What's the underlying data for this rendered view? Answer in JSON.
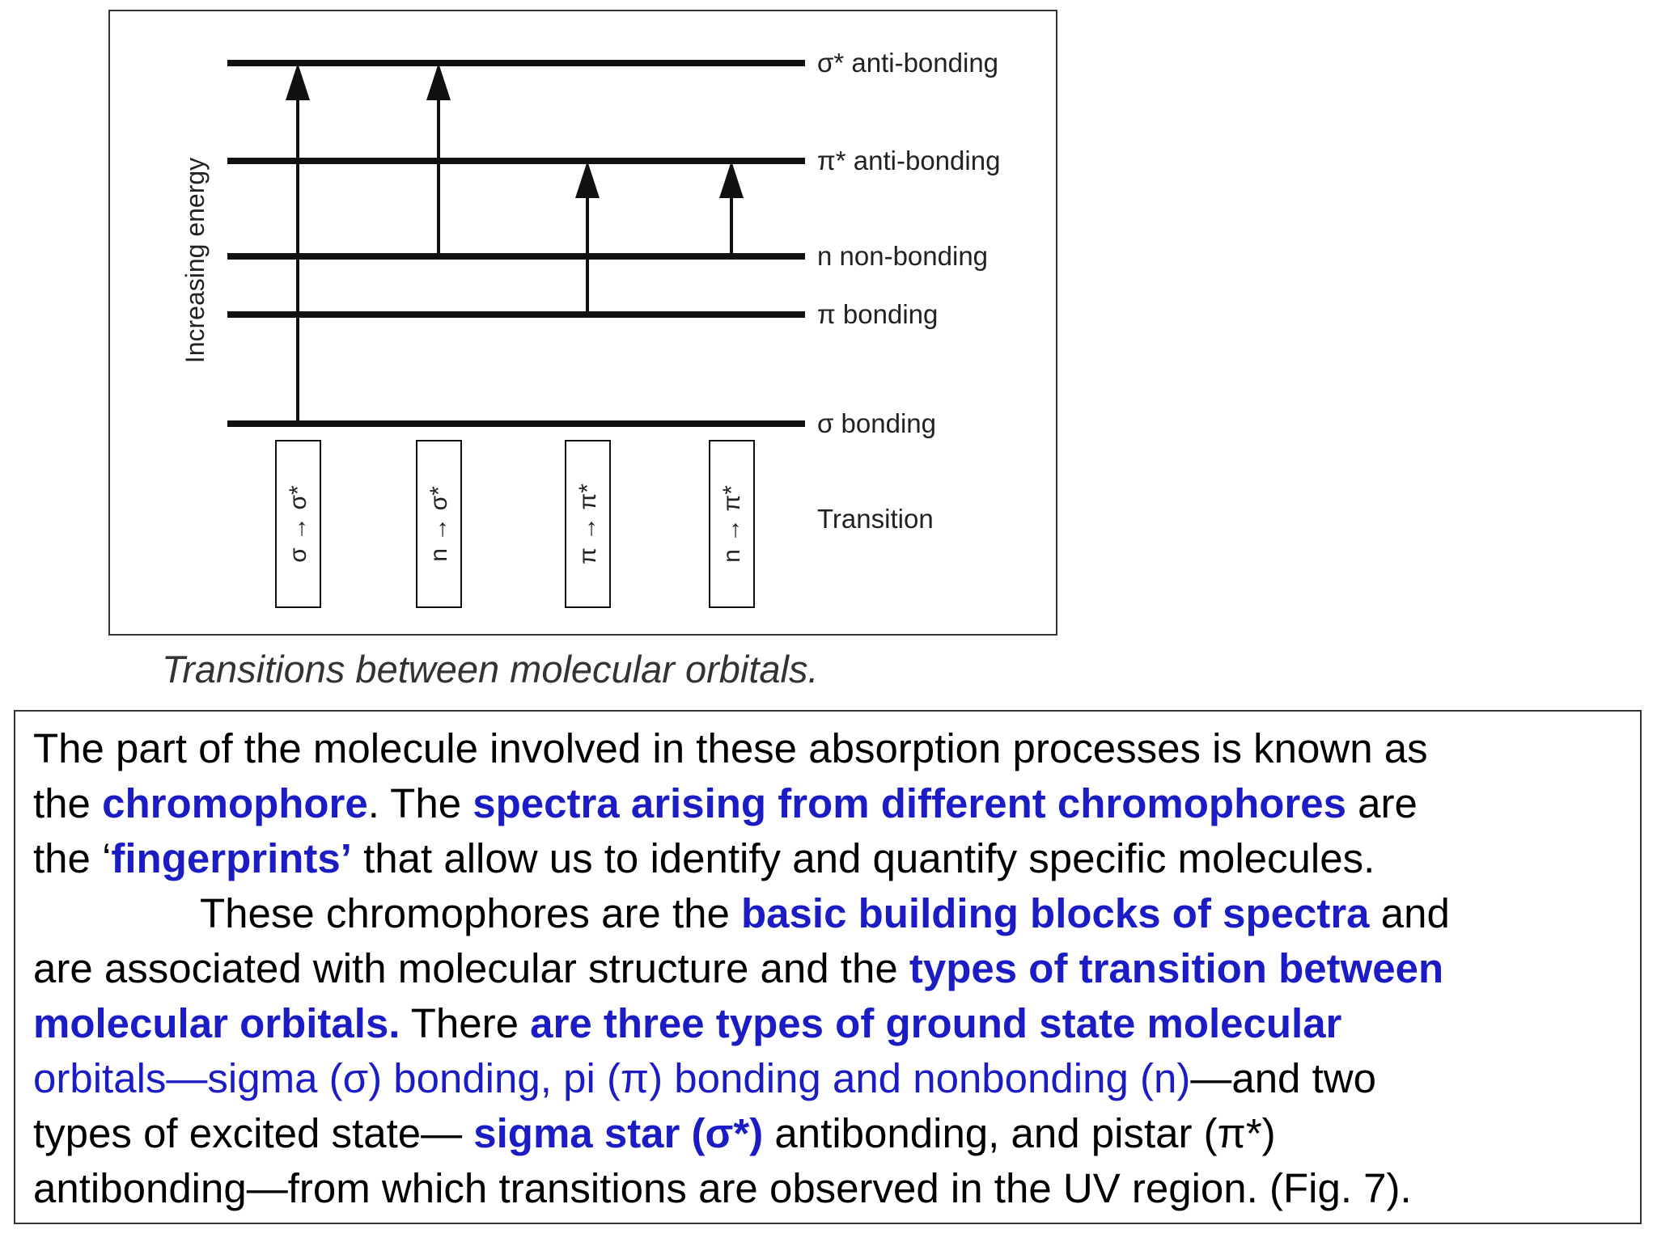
{
  "diagram": {
    "axis_label": "Increasing energy",
    "levels": [
      "σ* anti-bonding",
      "π* anti-bonding",
      "n non-bonding",
      "π bonding",
      "σ bonding"
    ],
    "transitions": [
      "σ → σ*",
      "n → σ*",
      "π → π*",
      "n → π*"
    ],
    "transition_label": "Transition",
    "caption": "Transitions between molecular orbitals."
  },
  "paragraph": {
    "lines": [
      {
        "segments": [
          {
            "text": "The part of the molecule involved in these absorption processes is known as"
          }
        ]
      },
      {
        "segments": [
          {
            "text": "the "
          },
          {
            "text": "chromophore",
            "emphasis": "bold-blue"
          },
          {
            "text": ". The "
          },
          {
            "text": "spectra arising from different chromophores",
            "emphasis": "bold-blue"
          },
          {
            "text": " are"
          }
        ]
      },
      {
        "segments": [
          {
            "text": "the ‘"
          },
          {
            "text": "fingerprints’",
            "emphasis": "bold-blue"
          },
          {
            "text": " that allow us to identify and quantify specific molecules."
          }
        ]
      },
      {
        "indent": true,
        "segments": [
          {
            "text": "These chromophores are the "
          },
          {
            "text": "basic building blocks of spectra",
            "emphasis": "bold-blue"
          },
          {
            "text": " and"
          }
        ]
      },
      {
        "segments": [
          {
            "text": "are associated with molecular structure and the "
          },
          {
            "text": "types of transition between",
            "emphasis": "bold-blue"
          }
        ]
      },
      {
        "segments": [
          {
            "text": "molecular orbitals.",
            "emphasis": "bold-blue"
          },
          {
            "text": " There "
          },
          {
            "text": "are three types of ground state molecular",
            "emphasis": "bold-blue"
          }
        ]
      },
      {
        "segments": [
          {
            "text": "orbitals—sigma (σ) bonding, pi (π) bonding and nonbonding (n)",
            "emphasis": "blue"
          },
          {
            "text": "—and two"
          }
        ]
      },
      {
        "segments": [
          {
            "text": "types of excited state— "
          },
          {
            "text": "sigma star (σ*)",
            "emphasis": "bold-blue"
          },
          {
            "text": " antibonding, and pistar (π*)"
          }
        ]
      },
      {
        "segments": [
          {
            "text": "antibonding—from which transitions are observed in the UV region. (Fig. 7)."
          }
        ]
      }
    ]
  }
}
